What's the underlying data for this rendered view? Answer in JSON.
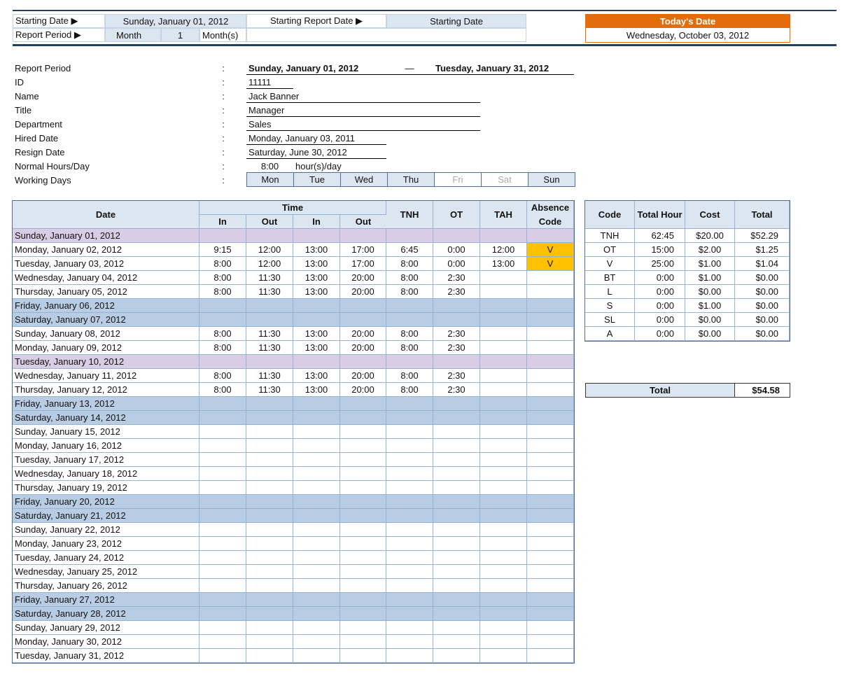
{
  "header": {
    "starting_date_label": "Starting Date ▶",
    "starting_date": "Sunday, January 01, 2012",
    "starting_report_date_label": "Starting Report Date ▶",
    "starting_report_date": "Starting Date",
    "report_period_label": "Report Period ▶",
    "report_period_unit": "Month",
    "report_period_count": "1",
    "report_period_suffix": "Month(s)",
    "todays_date_label": "Today's Date",
    "todays_date": "Wednesday, October 03, 2012"
  },
  "info": {
    "colon": ":",
    "rows": [
      {
        "label": "Report Period",
        "value": "Sunday, January 01, 2012",
        "dash": "—",
        "value2": "Tuesday, January 31, 2012"
      },
      {
        "label": "ID",
        "value": "11111"
      },
      {
        "label": "Name",
        "value": "Jack Banner"
      },
      {
        "label": "Title",
        "value": "Manager"
      },
      {
        "label": "Department",
        "value": "Sales"
      },
      {
        "label": "Hired Date",
        "value": "Monday, January 03, 2011"
      },
      {
        "label": "Resign Date",
        "value": "Saturday, June 30, 2012"
      },
      {
        "label": "Normal Hours/Day",
        "value": "8:00",
        "value2": "hour(s)/day"
      },
      {
        "label": "Working Days"
      }
    ],
    "working_days": [
      {
        "day": "Mon",
        "active": true
      },
      {
        "day": "Tue",
        "active": true
      },
      {
        "day": "Wed",
        "active": true
      },
      {
        "day": "Thu",
        "active": true
      },
      {
        "day": "Fri",
        "active": false
      },
      {
        "day": "Sat",
        "active": false
      },
      {
        "day": "Sun",
        "active": true
      }
    ]
  },
  "timesheet": {
    "headers": {
      "date": "Date",
      "time": "Time",
      "sub": [
        "In",
        "Out",
        "In",
        "Out"
      ],
      "tnh": "TNH",
      "ot": "OT",
      "tah": "TAH",
      "absence": "Absence Code"
    },
    "absence_color": "#ffc000",
    "rows": [
      {
        "cells": [
          "Sunday, January 01, 2012",
          null,
          null,
          null,
          null,
          null,
          null,
          null,
          null
        ],
        "fill": "#d8cde4"
      },
      {
        "cells": [
          "Monday, January 02, 2012",
          "9:15",
          "12:00",
          "13:00",
          "17:00",
          "6:45",
          "0:00",
          "12:00",
          "V"
        ]
      },
      {
        "cells": [
          "Tuesday, January 03, 2012",
          "8:00",
          "12:00",
          "13:00",
          "17:00",
          "8:00",
          "0:00",
          "13:00",
          "V"
        ]
      },
      {
        "cells": [
          "Wednesday, January 04, 2012",
          "8:00",
          "11:30",
          "13:00",
          "20:00",
          "8:00",
          "2:30",
          null,
          null
        ]
      },
      {
        "cells": [
          "Thursday, January 05, 2012",
          "8:00",
          "11:30",
          "13:00",
          "20:00",
          "8:00",
          "2:30",
          null,
          null
        ]
      },
      {
        "cells": [
          "Friday, January 06, 2012",
          null,
          null,
          null,
          null,
          null,
          null,
          null,
          null
        ],
        "fill": "#b8cce4"
      },
      {
        "cells": [
          "Saturday, January 07, 2012",
          null,
          null,
          null,
          null,
          null,
          null,
          null,
          null
        ],
        "fill": "#b8cce4"
      },
      {
        "cells": [
          "Sunday, January 08, 2012",
          "8:00",
          "11:30",
          "13:00",
          "20:00",
          "8:00",
          "2:30",
          null,
          null
        ]
      },
      {
        "cells": [
          "Monday, January 09, 2012",
          "8:00",
          "11:30",
          "13:00",
          "20:00",
          "8:00",
          "2:30",
          null,
          null
        ]
      },
      {
        "cells": [
          "Tuesday, January 10, 2012",
          null,
          null,
          null,
          null,
          null,
          null,
          null,
          null
        ],
        "fill": "#d8cde4"
      },
      {
        "cells": [
          "Wednesday, January 11, 2012",
          "8:00",
          "11:30",
          "13:00",
          "20:00",
          "8:00",
          "2:30",
          null,
          null
        ]
      },
      {
        "cells": [
          "Thursday, January 12, 2012",
          "8:00",
          "11:30",
          "13:00",
          "20:00",
          "8:00",
          "2:30",
          null,
          null
        ]
      },
      {
        "cells": [
          "Friday, January 13, 2012",
          null,
          null,
          null,
          null,
          null,
          null,
          null,
          null
        ],
        "fill": "#b8cce4"
      },
      {
        "cells": [
          "Saturday, January 14, 2012",
          null,
          null,
          null,
          null,
          null,
          null,
          null,
          null
        ],
        "fill": "#b8cce4"
      },
      {
        "cells": [
          "Sunday, January 15, 2012",
          null,
          null,
          null,
          null,
          null,
          null,
          null,
          null
        ]
      },
      {
        "cells": [
          "Monday, January 16, 2012",
          null,
          null,
          null,
          null,
          null,
          null,
          null,
          null
        ]
      },
      {
        "cells": [
          "Tuesday, January 17, 2012",
          null,
          null,
          null,
          null,
          null,
          null,
          null,
          null
        ]
      },
      {
        "cells": [
          "Wednesday, January 18, 2012",
          null,
          null,
          null,
          null,
          null,
          null,
          null,
          null
        ]
      },
      {
        "cells": [
          "Thursday, January 19, 2012",
          null,
          null,
          null,
          null,
          null,
          null,
          null,
          null
        ]
      },
      {
        "cells": [
          "Friday, January 20, 2012",
          null,
          null,
          null,
          null,
          null,
          null,
          null,
          null
        ],
        "fill": "#b8cce4"
      },
      {
        "cells": [
          "Saturday, January 21, 2012",
          null,
          null,
          null,
          null,
          null,
          null,
          null,
          null
        ],
        "fill": "#b8cce4"
      },
      {
        "cells": [
          "Sunday, January 22, 2012",
          null,
          null,
          null,
          null,
          null,
          null,
          null,
          null
        ]
      },
      {
        "cells": [
          "Monday, January 23, 2012",
          null,
          null,
          null,
          null,
          null,
          null,
          null,
          null
        ]
      },
      {
        "cells": [
          "Tuesday, January 24, 2012",
          null,
          null,
          null,
          null,
          null,
          null,
          null,
          null
        ]
      },
      {
        "cells": [
          "Wednesday, January 25, 2012",
          null,
          null,
          null,
          null,
          null,
          null,
          null,
          null
        ]
      },
      {
        "cells": [
          "Thursday, January 26, 2012",
          null,
          null,
          null,
          null,
          null,
          null,
          null,
          null
        ]
      },
      {
        "cells": [
          "Friday, January 27, 2012",
          null,
          null,
          null,
          null,
          null,
          null,
          null,
          null
        ],
        "fill": "#b8cce4"
      },
      {
        "cells": [
          "Saturday, January 28, 2012",
          null,
          null,
          null,
          null,
          null,
          null,
          null,
          null
        ],
        "fill": "#b8cce4"
      },
      {
        "cells": [
          "Sunday, January 29, 2012",
          null,
          null,
          null,
          null,
          null,
          null,
          null,
          null
        ]
      },
      {
        "cells": [
          "Monday, January 30, 2012",
          null,
          null,
          null,
          null,
          null,
          null,
          null,
          null
        ]
      },
      {
        "cells": [
          "Tuesday, January 31, 2012",
          null,
          null,
          null,
          null,
          null,
          null,
          null,
          null
        ]
      }
    ]
  },
  "summary": {
    "headers": [
      "Code",
      "Total Hour",
      "Cost",
      "Total"
    ],
    "rows": [
      [
        "TNH",
        "62:45",
        "$20.00",
        "$52.29"
      ],
      [
        "OT",
        "15:00",
        "$2.00",
        "$1.25"
      ],
      [
        "V",
        "25:00",
        "$1.00",
        "$1.04"
      ],
      [
        "BT",
        "0:00",
        "$1.00",
        "$0.00"
      ],
      [
        "L",
        "0:00",
        "$0.00",
        "$0.00"
      ],
      [
        "S",
        "0:00",
        "$1.00",
        "$0.00"
      ],
      [
        "SL",
        "0:00",
        "$0.00",
        "$0.00"
      ],
      [
        "A",
        "0:00",
        "$0.00",
        "$0.00"
      ]
    ],
    "total_label": "Total",
    "total_value": "$54.58"
  }
}
